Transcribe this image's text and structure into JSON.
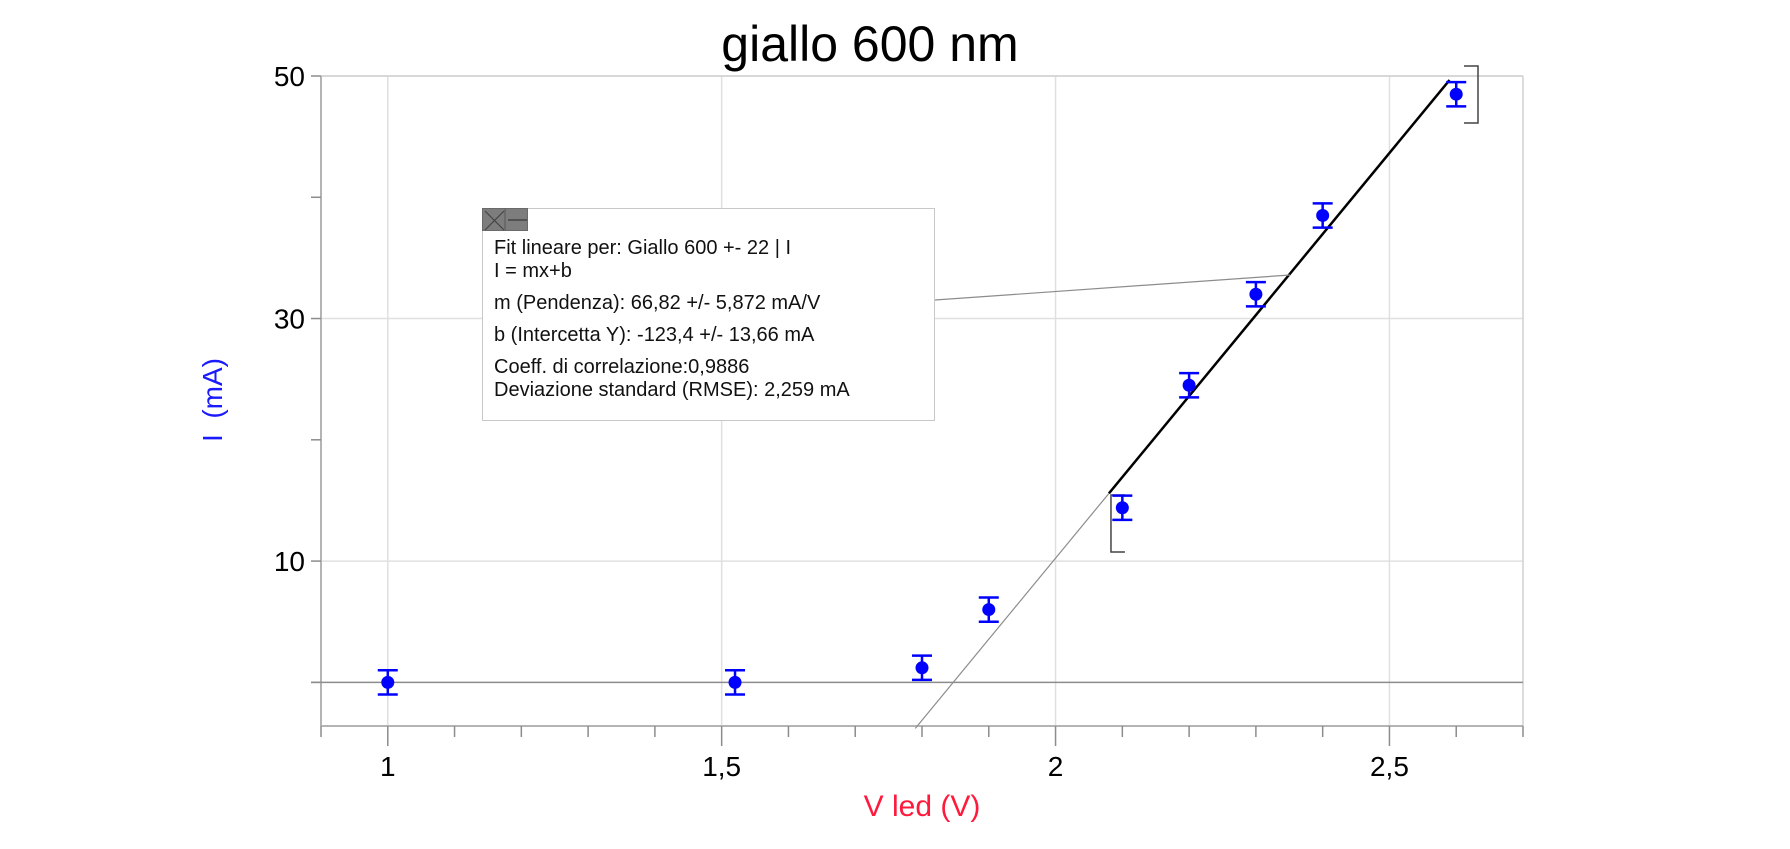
{
  "chart_data": {
    "type": "scatter",
    "title": "giallo 600 nm",
    "xlabel": "V led (V)",
    "ylabel": "I  (mA)",
    "xlim": [
      0.9,
      2.7
    ],
    "ylim": [
      -3.6,
      50
    ],
    "grid": true,
    "x_ticks": [
      {
        "value": 1,
        "label": "1"
      },
      {
        "value": 1.5,
        "label": "1,5"
      },
      {
        "value": 2,
        "label": "2"
      },
      {
        "value": 2.5,
        "label": "2,5"
      }
    ],
    "x_minor_step": 0.1,
    "y_ticks": [
      {
        "value": 50,
        "label": "50"
      },
      {
        "value": 30,
        "label": "30"
      },
      {
        "value": 10,
        "label": "10"
      }
    ],
    "y_minor_ticks": [
      40,
      20,
      0
    ],
    "series": [
      {
        "name": "Giallo 600 +- 22 | I",
        "color": "#0000ff",
        "marker": "circle",
        "error_bar": 1.0,
        "points": [
          {
            "x": 1.0,
            "y": 0.0
          },
          {
            "x": 1.52,
            "y": 0.0
          },
          {
            "x": 1.8,
            "y": 1.2
          },
          {
            "x": 1.9,
            "y": 6.0
          },
          {
            "x": 2.1,
            "y": 14.4
          },
          {
            "x": 2.2,
            "y": 24.5
          },
          {
            "x": 2.3,
            "y": 32.0
          },
          {
            "x": 2.4,
            "y": 38.5
          },
          {
            "x": 2.6,
            "y": 48.5
          }
        ]
      }
    ],
    "fit": {
      "type": "linear",
      "m": 66.82,
      "b": -123.4,
      "range": [
        2.08,
        2.6
      ],
      "extended_from_x": 1.79,
      "color": "#000000"
    },
    "zero_line": 0
  },
  "annotation": {
    "close_icon": "close-icon",
    "minimize_icon": "minimize-icon",
    "lines": [
      "Fit lineare per: Giallo 600 +- 22 | I",
      "I = mx+b",
      "m (Pendenza): 66,82 +/- 5,872 mA/V",
      "b (Intercetta Y): -123,4 +/- 13,66 mA",
      "Coeff. di correlazione:0,9886",
      "Deviazione standard (RMSE): 2,259 mA"
    ]
  },
  "colors": {
    "point": "#0000ff",
    "fit": "#000000",
    "grid": "#e0e0e0",
    "axis": "#b4b4b4",
    "xlabel": "#ff1a3c",
    "ylabel": "#1a1aff"
  }
}
